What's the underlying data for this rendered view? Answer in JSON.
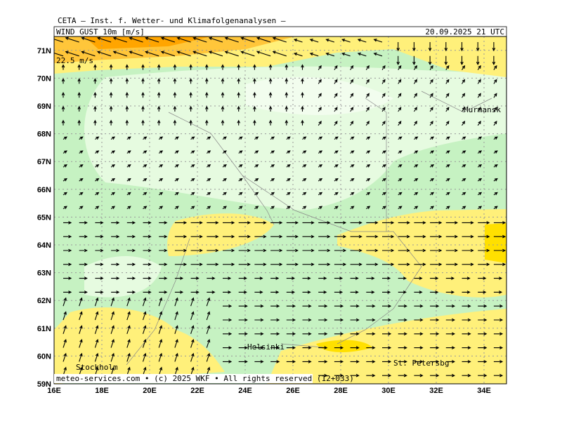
{
  "header": {
    "institute": "CETA — Inst. f. Wetter- und Klimafolgenanalysen —",
    "parameter": "WIND GUST 10m [m/s]",
    "valid_time": "20.09.2025 21 UTC"
  },
  "map": {
    "reference_arrow": "22.5 m/s",
    "lat_labels": [
      "59N",
      "60N",
      "61N",
      "62N",
      "63N",
      "64N",
      "65N",
      "66N",
      "67N",
      "68N",
      "69N",
      "70N",
      "71N"
    ],
    "lon_labels": [
      "16E",
      "18E",
      "20E",
      "22E",
      "24E",
      "26E",
      "28E",
      "30E",
      "32E",
      "34E"
    ],
    "cities": {
      "murmansk": "Murmansk",
      "helsinki": "Helsinki",
      "stockholm": "Stockholm",
      "st_petersburg": "St. Petersbg"
    }
  },
  "footer": "meteo-services.com • (c) 2025 WKF • All rights reserved (12+033)"
}
